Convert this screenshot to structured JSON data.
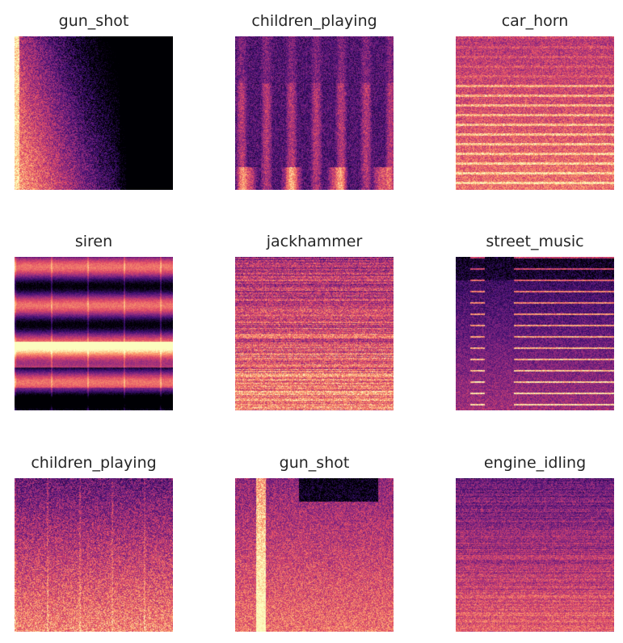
{
  "figure": {
    "panels": [
      {
        "title": "gun_shot"
      },
      {
        "title": "children_playing"
      },
      {
        "title": "car_horn"
      },
      {
        "title": "siren"
      },
      {
        "title": "jackhammer"
      },
      {
        "title": "street_music"
      },
      {
        "title": "children_playing"
      },
      {
        "title": "gun_shot"
      },
      {
        "title": "engine_idling"
      }
    ],
    "colormap": [
      "#000004",
      "#3b0f70",
      "#8c2981",
      "#de4968",
      "#fe9f6d",
      "#fcfdbf"
    ]
  }
}
